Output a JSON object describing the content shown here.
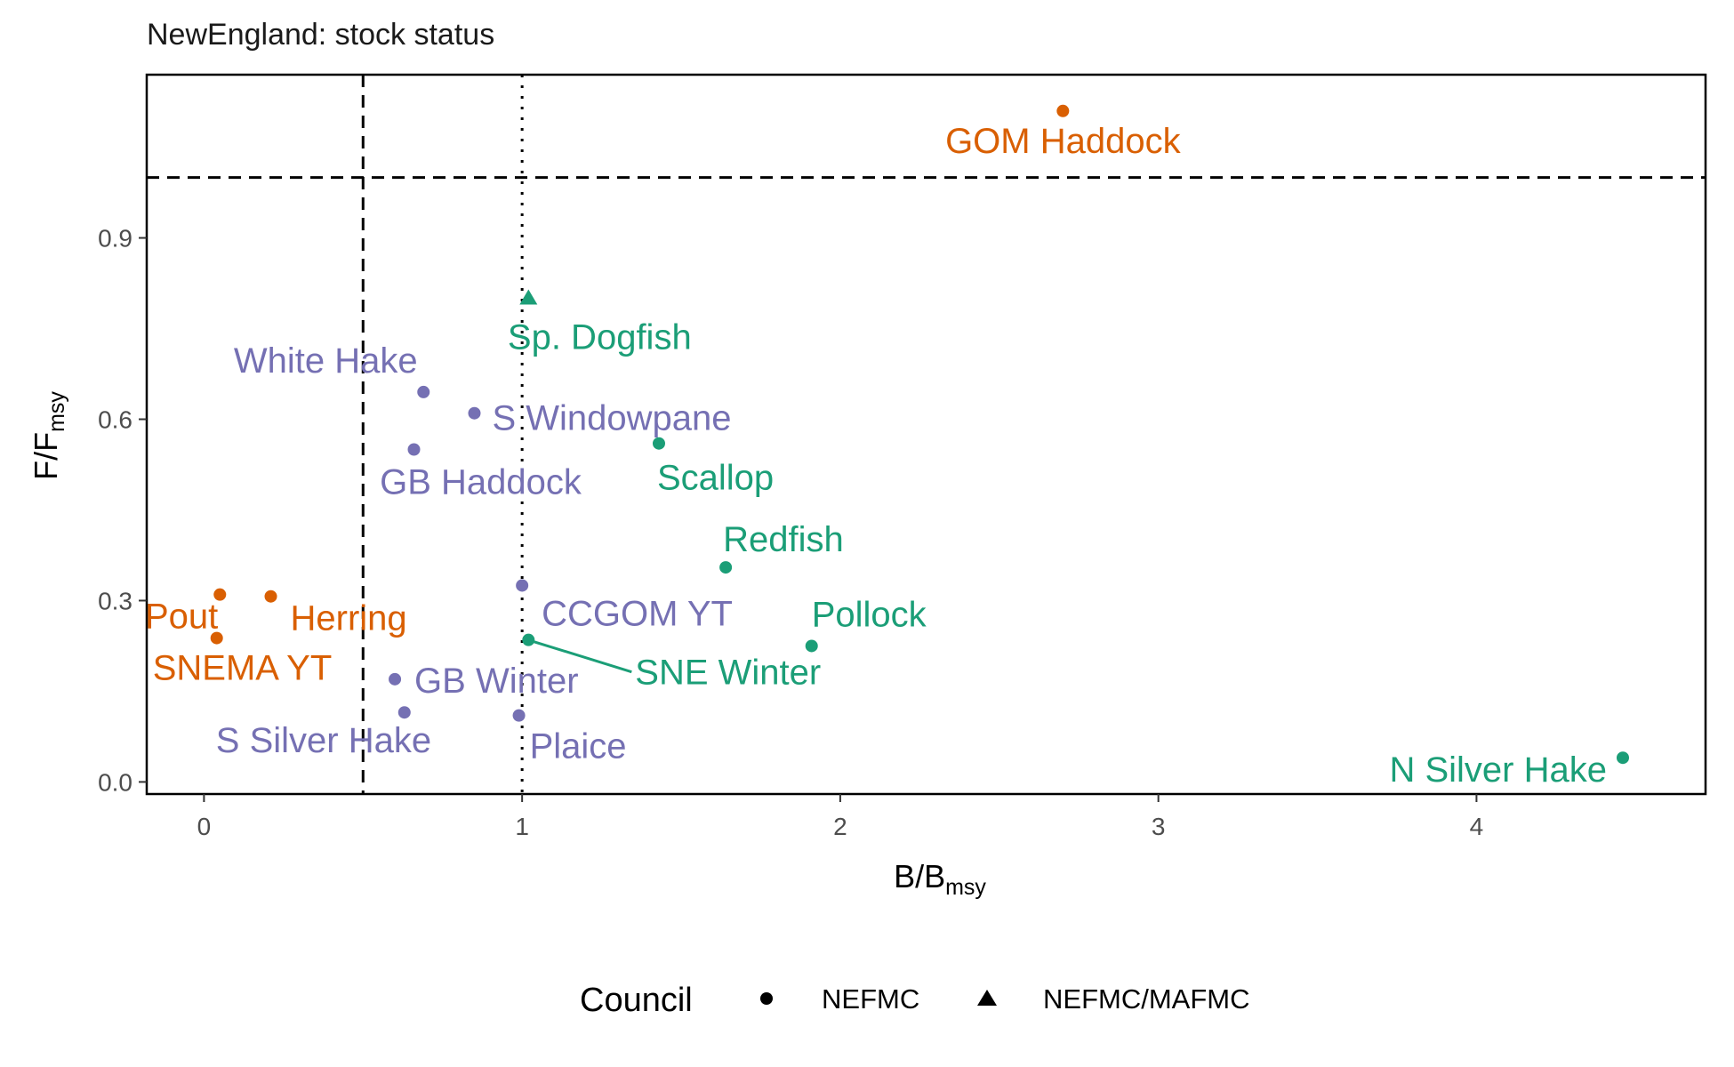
{
  "chart_data": {
    "type": "scatter",
    "title": "NewEngland: stock status",
    "xlabel": {
      "main": "B/B",
      "sub": "msy"
    },
    "ylabel": {
      "main": "F/F",
      "sub": "msy"
    },
    "xlim": [
      -0.18,
      4.72
    ],
    "ylim": [
      -0.02,
      1.17
    ],
    "x_ticks": [
      0,
      1,
      2,
      3,
      4
    ],
    "y_ticks": [
      0.0,
      0.3,
      0.6,
      0.9
    ],
    "y_tick_labels": [
      "0.0",
      "0.3",
      "0.6",
      "0.9"
    ],
    "grid": false,
    "reference_lines": [
      {
        "axis": "x",
        "value": 0.5,
        "style": "dashed"
      },
      {
        "axis": "x",
        "value": 1.0,
        "style": "dotted"
      },
      {
        "axis": "y",
        "value": 1.0,
        "style": "dashed"
      }
    ],
    "colors": {
      "orange": "#d95f02",
      "green": "#1b9e77",
      "purple": "#7570b3"
    },
    "legend": {
      "title": "Council",
      "placement": "bottom",
      "entries": [
        {
          "label": "NEFMC",
          "shape": "circle"
        },
        {
          "label": "NEFMC/MAFMC",
          "shape": "triangle"
        }
      ]
    },
    "points": [
      {
        "label": "GOM Haddock",
        "x": 2.7,
        "y": 1.11,
        "color": "#d95f02",
        "shape": "circle"
      },
      {
        "label": "Sp. Dogfish",
        "x": 1.02,
        "y": 0.8,
        "color": "#1b9e77",
        "shape": "triangle"
      },
      {
        "label": "White Hake",
        "x": 0.69,
        "y": 0.645,
        "color": "#7570b3",
        "shape": "circle"
      },
      {
        "label": "S Windowpane",
        "x": 0.85,
        "y": 0.61,
        "color": "#7570b3",
        "shape": "circle"
      },
      {
        "label": "GB Haddock",
        "x": 0.66,
        "y": 0.55,
        "color": "#7570b3",
        "shape": "circle"
      },
      {
        "label": "Scallop",
        "x": 1.43,
        "y": 0.56,
        "color": "#1b9e77",
        "shape": "circle"
      },
      {
        "label": "Redfish",
        "x": 1.64,
        "y": 0.355,
        "color": "#1b9e77",
        "shape": "circle"
      },
      {
        "label": "CCGOM YT",
        "x": 1.0,
        "y": 0.325,
        "color": "#7570b3",
        "shape": "circle"
      },
      {
        "label": "Pout",
        "x": 0.05,
        "y": 0.31,
        "color": "#d95f02",
        "shape": "circle"
      },
      {
        "label": "Herring",
        "x": 0.21,
        "y": 0.307,
        "color": "#d95f02",
        "shape": "circle"
      },
      {
        "label": "SNEMA YT",
        "x": 0.04,
        "y": 0.238,
        "color": "#d95f02",
        "shape": "circle"
      },
      {
        "label": "SNE Winter",
        "x": 1.02,
        "y": 0.235,
        "color": "#1b9e77",
        "shape": "circle"
      },
      {
        "label": "Pollock",
        "x": 1.91,
        "y": 0.225,
        "color": "#1b9e77",
        "shape": "circle"
      },
      {
        "label": "GB Winter",
        "x": 0.6,
        "y": 0.17,
        "color": "#7570b3",
        "shape": "circle"
      },
      {
        "label": "S Silver Hake",
        "x": 0.63,
        "y": 0.115,
        "color": "#7570b3",
        "shape": "circle"
      },
      {
        "label": "Plaice",
        "x": 0.99,
        "y": 0.11,
        "color": "#7570b3",
        "shape": "circle"
      },
      {
        "label": "N Silver Hake",
        "x": 4.46,
        "y": 0.04,
        "color": "#1b9e77",
        "shape": "circle"
      }
    ]
  }
}
